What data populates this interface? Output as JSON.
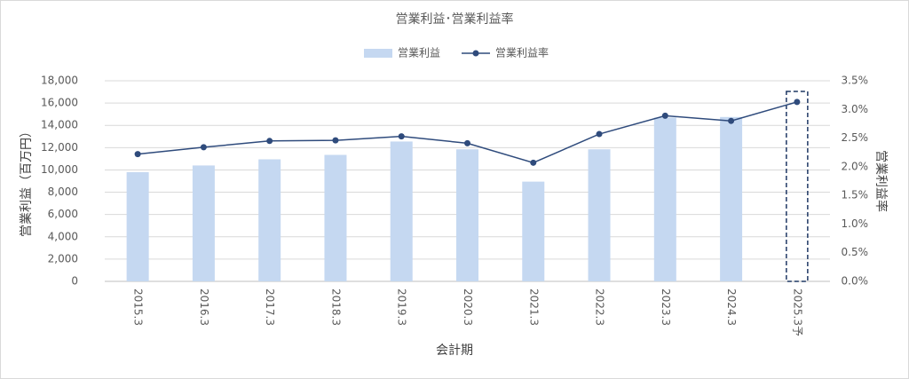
{
  "chart_data": {
    "type": "bar_line",
    "title": "営業利益･営業利益率",
    "x_label": "会計期",
    "y_label": "営業利益（百万円）",
    "y2_label": "営業利益率",
    "categories": [
      "2015.3",
      "2016.3",
      "2017.3",
      "2018.3",
      "2019.3",
      "2020.3",
      "2021.3",
      "2022.3",
      "2023.3",
      "2024.3",
      "2025.3予"
    ],
    "series": [
      {
        "name": "営業利益",
        "color": "#c5d8f1",
        "kind": "bar",
        "values": [
          9800,
          10400,
          10950,
          11350,
          12550,
          11850,
          8950,
          11850,
          14700,
          14750,
          null
        ]
      },
      {
        "name": "営業利益率",
        "color": "#2f4b7c",
        "kind": "line",
        "axis": "y2",
        "values": [
          2.22,
          2.34,
          2.45,
          2.46,
          2.53,
          2.41,
          2.07,
          2.57,
          2.89,
          2.8,
          3.13
        ]
      }
    ],
    "ylim": [
      0,
      18000
    ],
    "yticks": [
      0,
      {
        "value": 2000,
        "label": "2,000"
      },
      {
        "value": 4000,
        "label": "4,000"
      },
      {
        "value": 6000,
        "label": "6,000"
      },
      {
        "value": 8000,
        "label": "8,000"
      },
      {
        "value": 10000,
        "label": "10,000"
      },
      {
        "value": 12000,
        "label": "12,000"
      },
      {
        "value": 14000,
        "label": "14,000"
      },
      {
        "value": 16000,
        "label": "16,000"
      },
      {
        "value": 18000,
        "label": "18,000"
      }
    ],
    "y2lim": [
      0,
      3.5
    ],
    "y2ticks": [
      {
        "value": 0,
        "label": "0.0%"
      },
      {
        "value": 0.5,
        "label": "0.5%"
      },
      {
        "value": 1,
        "label": "1.0%"
      },
      {
        "value": 1.5,
        "label": "1.5%"
      },
      {
        "value": 2,
        "label": "2.0%"
      },
      {
        "value": 2.5,
        "label": "2.5%"
      },
      {
        "value": 3,
        "label": "3.0%"
      },
      {
        "value": 3.5,
        "label": "3.5%"
      }
    ],
    "grid": true,
    "legend": "top"
  }
}
